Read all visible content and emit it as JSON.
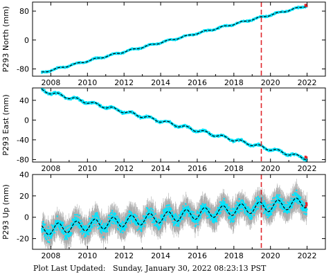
{
  "footer": {
    "label": "Plot Last Updated:",
    "timestamp": "Sunday, January 30, 2022 08:23:13 PST"
  },
  "colors": {
    "data": "#00e5ff",
    "error_bars": "#9e9e9e",
    "model": "#000000",
    "event_line": "#e0262b",
    "recent": "#e0262b"
  },
  "chart_data": [
    {
      "type": "scatter",
      "ylabel": "P293 North (mm)",
      "xlim": [
        2007.0,
        2023.0
      ],
      "ylim": [
        -100,
        105
      ],
      "yticks": [
        -80,
        0,
        80
      ],
      "xticks": [
        2008,
        2010,
        2012,
        2014,
        2016,
        2018,
        2020,
        2022
      ],
      "event_line_x": 2019.5,
      "trend": {
        "x_start": 2007.5,
        "y_start": -90,
        "x_end": 2022.0,
        "y_end": 95
      },
      "seasonal_amplitude": 2,
      "error_bar_half": 0,
      "scatter": 2,
      "recent_x": 2021.9,
      "recent_y": 96
    },
    {
      "type": "scatter",
      "ylabel": "P293 East (mm)",
      "xlim": [
        2007.0,
        2023.0
      ],
      "ylim": [
        -85,
        65
      ],
      "yticks": [
        -80,
        -40,
        0,
        40
      ],
      "xticks": [
        2008,
        2010,
        2012,
        2014,
        2016,
        2018,
        2020,
        2022
      ],
      "event_line_x": 2019.5,
      "trend": {
        "x_start": 2007.5,
        "y_start": 60,
        "x_end": 2022.0,
        "y_end": -78
      },
      "seasonal_amplitude": 3,
      "error_bar_half": 0,
      "scatter": 2,
      "recent_x": 2021.9,
      "recent_y": -75
    },
    {
      "type": "scatter",
      "ylabel": "P293 Up (mm)",
      "xlim": [
        2007.0,
        2023.0
      ],
      "ylim": [
        -30,
        40
      ],
      "yticks": [
        -20,
        0,
        20,
        40
      ],
      "xticks": [
        2008,
        2010,
        2012,
        2014,
        2016,
        2018,
        2020,
        2022
      ],
      "event_line_x": 2019.5,
      "trend": {
        "x_start": 2007.5,
        "y_start": -12,
        "x_end": 2022.0,
        "y_end": 14
      },
      "seasonal_amplitude": 5,
      "error_bar_half": 9,
      "scatter": 5,
      "recent_x": 2021.9,
      "recent_y": 12
    }
  ]
}
